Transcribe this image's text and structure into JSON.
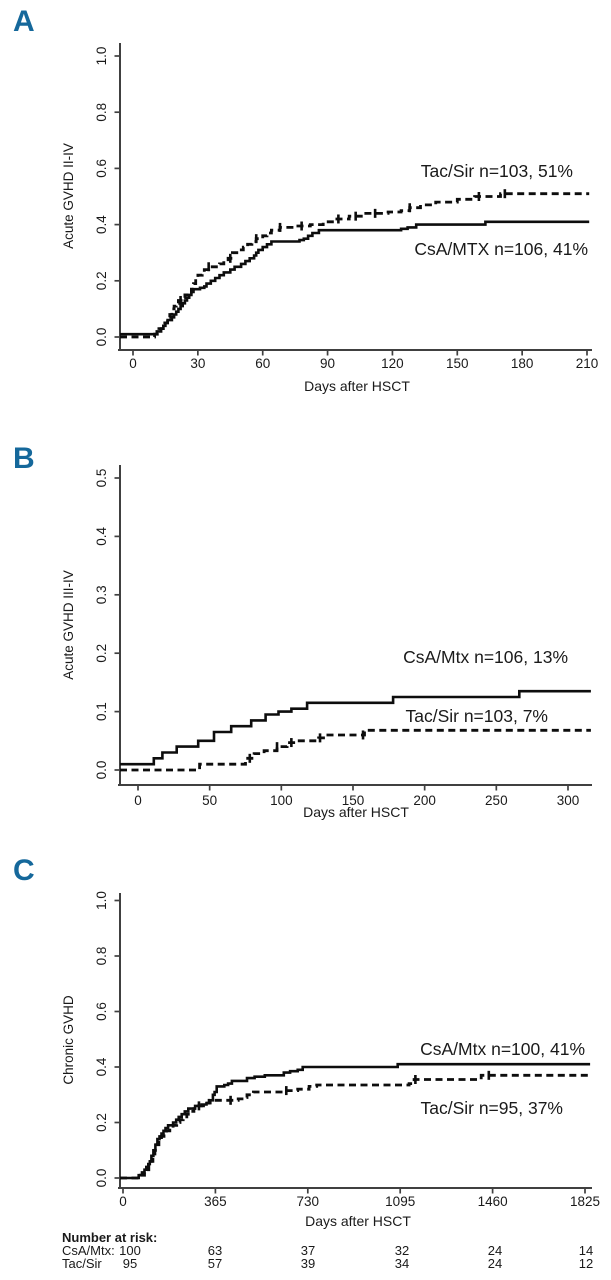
{
  "colors": {
    "panel_letter": "#15689b",
    "curve": "#0d0d0d",
    "axis": "#404040",
    "text": "#1a1a1a"
  },
  "chart_data": [
    {
      "type": "line",
      "panel_letter": "A",
      "ylabel": "Acute GVHD II-IV",
      "xlabel": "Days after HSCT",
      "xlim": [
        0,
        210
      ],
      "ylim": [
        0,
        1
      ],
      "grid": false,
      "x_ticks": [
        {
          "v": 0,
          "label": "0"
        },
        {
          "v": 30,
          "label": "30"
        },
        {
          "v": 60,
          "label": "60"
        },
        {
          "v": 90,
          "label": "90"
        },
        {
          "v": 120,
          "label": "120"
        },
        {
          "v": 150,
          "label": "150"
        },
        {
          "v": 180,
          "label": "180"
        },
        {
          "v": 210,
          "label": "210"
        }
      ],
      "y_ticks": [
        {
          "v": 0,
          "label": "0.0"
        },
        {
          "v": 0.2,
          "label": "0.2"
        },
        {
          "v": 0.4,
          "label": "0.4"
        },
        {
          "v": 0.6,
          "label": "0.6"
        },
        {
          "v": 0.8,
          "label": "0.8"
        },
        {
          "v": 1,
          "label": "1.0"
        }
      ],
      "series": [
        {
          "name": "Tac/Sir",
          "legend_label": "Tac/Sir n=103, 51%",
          "line": "dashed",
          "points": [
            [
              0,
              0
            ],
            [
              10,
              0.01
            ],
            [
              12,
              0.03
            ],
            [
              14,
              0.05
            ],
            [
              16,
              0.07
            ],
            [
              17,
              0.08
            ],
            [
              18,
              0.1
            ],
            [
              19,
              0.11
            ],
            [
              20,
              0.12
            ],
            [
              21,
              0.13
            ],
            [
              23,
              0.14
            ],
            [
              24,
              0.15
            ],
            [
              25,
              0.16
            ],
            [
              27,
              0.17
            ],
            [
              28,
              0.19
            ],
            [
              29,
              0.21
            ],
            [
              30,
              0.22
            ],
            [
              32,
              0.23
            ],
            [
              33,
              0.24
            ],
            [
              35,
              0.25
            ],
            [
              40,
              0.26
            ],
            [
              42,
              0.27
            ],
            [
              44,
              0.28
            ],
            [
              46,
              0.3
            ],
            [
              48,
              0.31
            ],
            [
              51,
              0.32
            ],
            [
              53,
              0.33
            ],
            [
              55,
              0.34
            ],
            [
              57,
              0.35
            ],
            [
              60,
              0.36
            ],
            [
              62,
              0.37
            ],
            [
              64,
              0.38
            ],
            [
              68,
              0.39
            ],
            [
              75,
              0.395
            ],
            [
              82,
              0.4
            ],
            [
              88,
              0.41
            ],
            [
              93,
              0.42
            ],
            [
              100,
              0.43
            ],
            [
              107,
              0.44
            ],
            [
              118,
              0.445
            ],
            [
              124,
              0.45
            ],
            [
              128,
              0.46
            ],
            [
              133,
              0.47
            ],
            [
              140,
              0.48
            ],
            [
              150,
              0.49
            ],
            [
              158,
              0.5
            ],
            [
              170,
              0.51
            ],
            [
              211,
              0.51
            ]
          ],
          "censor_days": [
            22,
            35,
            45,
            57,
            68,
            78,
            95,
            103,
            112,
            128,
            160,
            172
          ]
        },
        {
          "name": "CsA/MTX",
          "legend_label": "CsA/MTX n=106, 41%",
          "line": "solid",
          "points": [
            [
              0,
              0.01
            ],
            [
              11,
              0.02
            ],
            [
              13,
              0.03
            ],
            [
              14,
              0.04
            ],
            [
              15,
              0.05
            ],
            [
              16,
              0.06
            ],
            [
              18,
              0.07
            ],
            [
              19,
              0.08
            ],
            [
              20,
              0.09
            ],
            [
              21,
              0.1
            ],
            [
              22,
              0.11
            ],
            [
              23,
              0.12
            ],
            [
              24,
              0.13
            ],
            [
              25,
              0.14
            ],
            [
              26,
              0.15
            ],
            [
              27,
              0.16
            ],
            [
              28,
              0.17
            ],
            [
              31,
              0.175
            ],
            [
              33,
              0.18
            ],
            [
              34,
              0.19
            ],
            [
              36,
              0.2
            ],
            [
              38,
              0.21
            ],
            [
              40,
              0.22
            ],
            [
              42,
              0.23
            ],
            [
              45,
              0.24
            ],
            [
              47,
              0.25
            ],
            [
              50,
              0.26
            ],
            [
              52,
              0.27
            ],
            [
              54,
              0.28
            ],
            [
              56,
              0.29
            ],
            [
              57,
              0.3
            ],
            [
              58,
              0.31
            ],
            [
              60,
              0.32
            ],
            [
              62,
              0.33
            ],
            [
              64,
              0.34
            ],
            [
              77,
              0.345
            ],
            [
              79,
              0.35
            ],
            [
              81,
              0.36
            ],
            [
              83,
              0.37
            ],
            [
              86,
              0.38
            ],
            [
              124,
              0.385
            ],
            [
              127,
              0.39
            ],
            [
              131,
              0.4
            ],
            [
              163,
              0.41
            ],
            [
              211,
              0.41
            ]
          ],
          "censor_days": []
        }
      ]
    },
    {
      "type": "line",
      "panel_letter": "B",
      "ylabel": "Acute GVHD III-IV",
      "xlabel": "Days after HSCT",
      "xlim": [
        0,
        300
      ],
      "ylim": [
        0,
        0.5
      ],
      "grid": false,
      "x_ticks": [
        {
          "v": 0,
          "label": "0"
        },
        {
          "v": 50,
          "label": "50"
        },
        {
          "v": 100,
          "label": "100"
        },
        {
          "v": 150,
          "label": "150"
        },
        {
          "v": 200,
          "label": "200"
        },
        {
          "v": 250,
          "label": "250"
        },
        {
          "v": 300,
          "label": "300"
        }
      ],
      "y_ticks": [
        {
          "v": 0,
          "label": "0.0"
        },
        {
          "v": 0.1,
          "label": "0.1"
        },
        {
          "v": 0.2,
          "label": "0.2"
        },
        {
          "v": 0.3,
          "label": "0.3"
        },
        {
          "v": 0.4,
          "label": "0.4"
        },
        {
          "v": 0.5,
          "label": "0.5"
        }
      ],
      "series": [
        {
          "name": "CsA/Mtx",
          "legend_label": "CsA/Mtx n=106, 13%",
          "line": "solid",
          "points": [
            [
              0,
              0.01
            ],
            [
              11,
              0.02
            ],
            [
              17,
              0.03
            ],
            [
              27,
              0.04
            ],
            [
              42,
              0.05
            ],
            [
              53,
              0.065
            ],
            [
              65,
              0.075
            ],
            [
              79,
              0.085
            ],
            [
              89,
              0.095
            ],
            [
              98,
              0.1
            ],
            [
              107,
              0.105
            ],
            [
              118,
              0.115
            ],
            [
              178,
              0.125
            ],
            [
              266,
              0.135
            ],
            [
              316,
              0.135
            ]
          ],
          "censor_days": []
        },
        {
          "name": "Tac/Sir",
          "legend_label": "Tac/Sir n=103, 7%",
          "line": "dashed",
          "points": [
            [
              0,
              0
            ],
            [
              43,
              0.01
            ],
            [
              75,
              0.02
            ],
            [
              81,
              0.028
            ],
            [
              88,
              0.033
            ],
            [
              97,
              0.04
            ],
            [
              104,
              0.047
            ],
            [
              110,
              0.05
            ],
            [
              126,
              0.055
            ],
            [
              131,
              0.06
            ],
            [
              158,
              0.068
            ],
            [
              316,
              0.068
            ]
          ],
          "censor_days": [
            78,
            97,
            107,
            127,
            157
          ]
        }
      ]
    },
    {
      "type": "line",
      "panel_letter": "C",
      "ylabel": "Chronic GVHD",
      "xlabel": "Days after HSCT",
      "xlim": [
        0,
        1825
      ],
      "ylim": [
        0,
        1
      ],
      "grid": false,
      "x_ticks": [
        {
          "v": 0,
          "label": "0"
        },
        {
          "v": 365,
          "label": "365"
        },
        {
          "v": 730,
          "label": "730"
        },
        {
          "v": 1095,
          "label": "1095"
        },
        {
          "v": 1460,
          "label": "1460"
        },
        {
          "v": 1825,
          "label": "1825"
        }
      ],
      "y_ticks": [
        {
          "v": 0,
          "label": "0.0"
        },
        {
          "v": 0.2,
          "label": "0.2"
        },
        {
          "v": 0.4,
          "label": "0.4"
        },
        {
          "v": 0.6,
          "label": "0.6"
        },
        {
          "v": 0.8,
          "label": "0.8"
        },
        {
          "v": 1,
          "label": "1.0"
        }
      ],
      "series": [
        {
          "name": "CsA/Mtx",
          "legend_label": "CsA/Mtx n=100, 41%",
          "line": "solid",
          "points": [
            [
              0,
              0
            ],
            [
              62,
              0.01
            ],
            [
              75,
              0.02
            ],
            [
              85,
              0.03
            ],
            [
              92,
              0.04
            ],
            [
              100,
              0.05
            ],
            [
              106,
              0.06
            ],
            [
              112,
              0.08
            ],
            [
              120,
              0.1
            ],
            [
              128,
              0.12
            ],
            [
              136,
              0.14
            ],
            [
              144,
              0.15
            ],
            [
              152,
              0.16
            ],
            [
              160,
              0.17
            ],
            [
              168,
              0.18
            ],
            [
              178,
              0.19
            ],
            [
              198,
              0.2
            ],
            [
              210,
              0.21
            ],
            [
              220,
              0.22
            ],
            [
              232,
              0.23
            ],
            [
              244,
              0.24
            ],
            [
              258,
              0.25
            ],
            [
              285,
              0.26
            ],
            [
              310,
              0.265
            ],
            [
              330,
              0.27
            ],
            [
              345,
              0.28
            ],
            [
              355,
              0.3
            ],
            [
              362,
              0.31
            ],
            [
              370,
              0.33
            ],
            [
              400,
              0.335
            ],
            [
              415,
              0.34
            ],
            [
              430,
              0.35
            ],
            [
              490,
              0.36
            ],
            [
              520,
              0.365
            ],
            [
              560,
              0.37
            ],
            [
              635,
              0.38
            ],
            [
              660,
              0.385
            ],
            [
              690,
              0.39
            ],
            [
              710,
              0.4
            ],
            [
              1085,
              0.41
            ],
            [
              1845,
              0.41
            ]
          ],
          "censor_days": []
        },
        {
          "name": "Tac/Sir",
          "legend_label": "Tac/Sir n=95, 37%",
          "line": "dashed",
          "points": [
            [
              0,
              0
            ],
            [
              70,
              0.01
            ],
            [
              85,
              0.02
            ],
            [
              95,
              0.03
            ],
            [
              102,
              0.05
            ],
            [
              110,
              0.06
            ],
            [
              118,
              0.08
            ],
            [
              126,
              0.1
            ],
            [
              134,
              0.12
            ],
            [
              142,
              0.14
            ],
            [
              152,
              0.15
            ],
            [
              162,
              0.16
            ],
            [
              172,
              0.17
            ],
            [
              185,
              0.18
            ],
            [
              198,
              0.19
            ],
            [
              212,
              0.2
            ],
            [
              225,
              0.21
            ],
            [
              238,
              0.22
            ],
            [
              252,
              0.23
            ],
            [
              265,
              0.24
            ],
            [
              280,
              0.25
            ],
            [
              298,
              0.26
            ],
            [
              318,
              0.27
            ],
            [
              340,
              0.28
            ],
            [
              455,
              0.285
            ],
            [
              470,
              0.29
            ],
            [
              490,
              0.3
            ],
            [
              515,
              0.31
            ],
            [
              640,
              0.315
            ],
            [
              690,
              0.32
            ],
            [
              735,
              0.33
            ],
            [
              765,
              0.335
            ],
            [
              1130,
              0.34
            ],
            [
              1150,
              0.355
            ],
            [
              1415,
              0.37
            ],
            [
              1845,
              0.37
            ]
          ],
          "censor_days": [
            300,
            425,
            645,
            1155,
            1445
          ]
        }
      ],
      "number_at_risk": {
        "title": "Number at risk:",
        "rows": [
          {
            "label": "CsA/Mtx:",
            "values": [
              "100",
              "63",
              "37",
              "32",
              "24",
              "14"
            ]
          },
          {
            "label": "Tac/Sir",
            "values": [
              "95",
              "57",
              "39",
              "34",
              "24",
              "12"
            ]
          }
        ]
      }
    }
  ]
}
